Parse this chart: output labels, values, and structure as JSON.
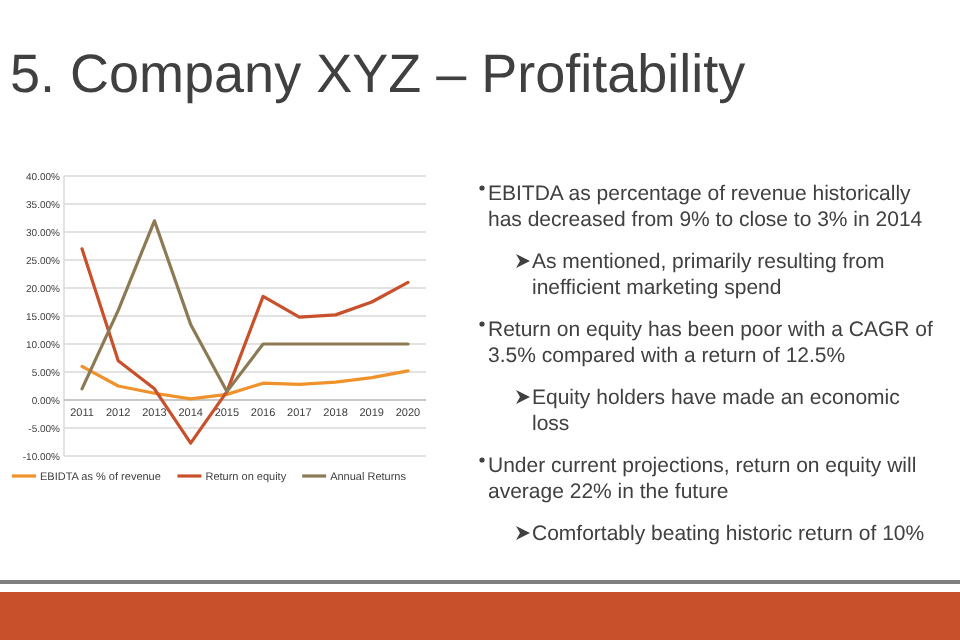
{
  "chart_data": {
    "type": "line",
    "title": "5. Company XYZ – Profitability",
    "categories": [
      "2011",
      "2012",
      "2013",
      "2014",
      "2015",
      "2016",
      "2017",
      "2018",
      "2019",
      "2020"
    ],
    "series": [
      {
        "name": "EBIDTA as % of revenue",
        "color": "#f0922b",
        "values": [
          6,
          2.5,
          1.2,
          0.2,
          1,
          3,
          2.8,
          3.2,
          4,
          5.2
        ]
      },
      {
        "name": "Return on equity",
        "color": "#c8502a",
        "values": [
          27,
          7,
          2,
          -7.7,
          1.5,
          18.5,
          14.8,
          15.2,
          17.5,
          21
        ]
      },
      {
        "name": "Annual Returns",
        "color": "#8c7a55",
        "values": [
          2,
          16,
          32,
          13.5,
          1.5,
          10,
          10,
          10,
          10,
          10
        ]
      }
    ],
    "ylim": [
      -10,
      40
    ],
    "yticks": [
      {
        "value": -10,
        "label": "-10.00%"
      },
      {
        "value": -5,
        "label": "-5.00%"
      },
      {
        "value": 0,
        "label": "0.00%"
      },
      {
        "value": 5,
        "label": "5.00%"
      },
      {
        "value": 10,
        "label": "10.00%"
      },
      {
        "value": 15,
        "label": "15.00%"
      },
      {
        "value": 20,
        "label": "20.00%"
      },
      {
        "value": 25,
        "label": "25.00%"
      },
      {
        "value": 30,
        "label": "30.00%"
      },
      {
        "value": 35,
        "label": "35.00%"
      },
      {
        "value": 40,
        "label": "40.00%"
      }
    ],
    "grid": "y",
    "legend": "bottom",
    "marker": "none",
    "line_style": "solid",
    "annotations": [
      "EBITDA as percentage of revenue historically has decreased from 9% to close to 3% in 2014",
      "As mentioned, primarily resulting from inefficient marketing spend",
      "Return on equity has been poor with a CAGR of 3.5% compared with a return of 12.5%",
      "Equity holders have made an economic loss",
      "Under current projections, return on equity will average 22% in the future",
      "Comfortably beating historic return of 10%"
    ]
  }
}
